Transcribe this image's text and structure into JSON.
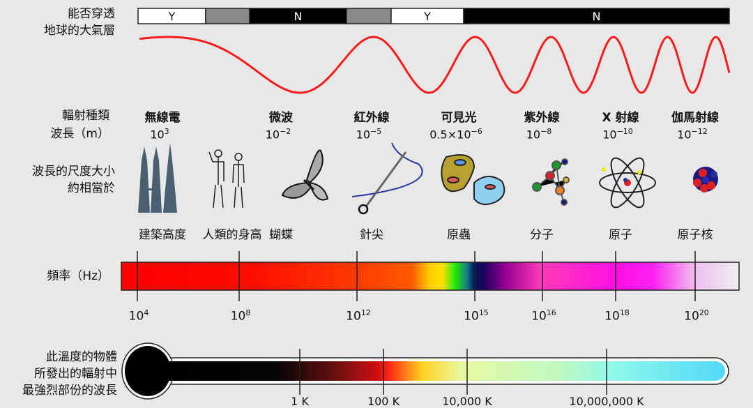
{
  "atmosphere": {
    "label_lines": [
      "能否穿透",
      "地球的大氣層"
    ],
    "segments": [
      {
        "text": "Y",
        "color": "#ffffff"
      },
      {
        "text": "",
        "color": "#888888"
      },
      {
        "text": "N",
        "color": "#000000"
      },
      {
        "text": "",
        "color": "#888888"
      },
      {
        "text": "Y",
        "color": "#ffffff"
      },
      {
        "text": "N",
        "color": "#000000"
      }
    ]
  },
  "wave_color": "#ff1a1a",
  "row_labels": {
    "type": "輻射種類",
    "wavelength": "波長（m）",
    "scale_lines": [
      "波長的尺度大小",
      "約相當於"
    ],
    "frequency": "頻率（Hz）",
    "temp_lines": [
      "此溫度的物體",
      "所發出的輻射中",
      "最強烈部份的波長"
    ]
  },
  "bands": [
    {
      "name": "無線電",
      "wl_base": "10",
      "wl_prefix": "",
      "wl_exp": "3",
      "object": "建築高度",
      "icon": "towers-icon"
    },
    {
      "name": "",
      "wl_base": "",
      "wl_prefix": "",
      "wl_exp": "",
      "object": "人類的身高",
      "icon": "humans-icon"
    },
    {
      "name": "微波",
      "wl_base": "10",
      "wl_prefix": "",
      "wl_exp": "−2",
      "object": "蝴蝶",
      "icon": "butterfly-icon"
    },
    {
      "name": "紅外線",
      "wl_base": "10",
      "wl_prefix": "",
      "wl_exp": "−5",
      "object": "針尖",
      "icon": "needle-icon"
    },
    {
      "name": "可見光",
      "wl_base": "10",
      "wl_prefix": "0.5×",
      "wl_exp": "−6",
      "object": "原蟲",
      "icon": "protozoa-icon"
    },
    {
      "name": "紫外線",
      "wl_base": "10",
      "wl_prefix": "",
      "wl_exp": "−8",
      "object": "分子",
      "icon": "molecule-icon"
    },
    {
      "name": "X 射線",
      "wl_base": "10",
      "wl_prefix": "",
      "wl_exp": "−10",
      "object": "原子",
      "icon": "atom-icon"
    },
    {
      "name": "伽馬射線",
      "wl_base": "10",
      "wl_prefix": "",
      "wl_exp": "−12",
      "object": "原子核",
      "icon": "nucleus-icon"
    }
  ],
  "frequency_ticks": [
    {
      "base": "10",
      "exp": "4"
    },
    {
      "base": "10",
      "exp": "8"
    },
    {
      "base": "10",
      "exp": "12"
    },
    {
      "base": "10",
      "exp": "15"
    },
    {
      "base": "10",
      "exp": "16"
    },
    {
      "base": "10",
      "exp": "18"
    },
    {
      "base": "10",
      "exp": "20"
    }
  ],
  "temperature_ticks": [
    "1 K",
    "100 K",
    "10,000 K",
    "10,000,000 K"
  ]
}
